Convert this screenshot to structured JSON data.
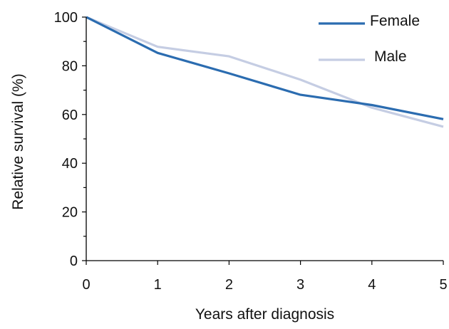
{
  "chart_data": {
    "type": "line",
    "title": "",
    "xlabel": "Years after diagnosis",
    "ylabel": "Relative survival (%)",
    "x": [
      0,
      1,
      2,
      3,
      4,
      5
    ],
    "x_ticks": [
      "0",
      "1",
      "2",
      "3",
      "4",
      "5"
    ],
    "y_ticks": [
      "0",
      "20",
      "40",
      "60",
      "80",
      "100"
    ],
    "xlim": [
      0,
      5
    ],
    "ylim": [
      0,
      100
    ],
    "grid": false,
    "legend_position": "top-right",
    "series": [
      {
        "name": "Female",
        "color": "#2b6cb0",
        "values": [
          100,
          85.3,
          76.9,
          68.1,
          63.9,
          58.1
        ]
      },
      {
        "name": "Male",
        "color": "#c5cde3",
        "values": [
          100,
          87.8,
          83.9,
          74.3,
          62.8,
          55.0
        ]
      }
    ]
  }
}
